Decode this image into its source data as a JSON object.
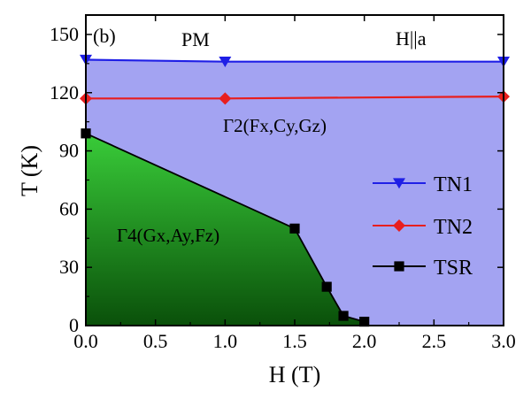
{
  "chart_data": {
    "type": "line",
    "panel_label": "(b)",
    "xlabel": "H (T)",
    "ylabel": "T (K)",
    "xlim": [
      0,
      3.0
    ],
    "ylim": [
      0,
      160
    ],
    "x_ticks": [
      0.0,
      0.5,
      1.0,
      1.5,
      2.0,
      2.5,
      3.0
    ],
    "x_tick_labels": [
      "0.0",
      "0.5",
      "1.0",
      "1.5",
      "2.0",
      "2.5",
      "3.0"
    ],
    "y_ticks": [
      0,
      30,
      60,
      90,
      120,
      150
    ],
    "y_tick_labels": [
      "0",
      "30",
      "60",
      "90",
      "120",
      "150"
    ],
    "region_labels": {
      "pm": "PM",
      "orientation": "H||a",
      "gamma2": "Γ2(Fx,Cy,Gz)",
      "gamma4": "Γ4(Gx,Ay,Fz)"
    },
    "series": [
      {
        "name": "TN1",
        "color": "#1f1fe6",
        "marker": "triangle-down",
        "x": [
          0.0,
          1.0,
          3.0
        ],
        "y": [
          137,
          136,
          136
        ]
      },
      {
        "name": "TN2",
        "color": "#e81e1e",
        "marker": "diamond",
        "x": [
          0.0,
          1.0,
          3.0
        ],
        "y": [
          117,
          117,
          118
        ]
      },
      {
        "name": "TSR",
        "color": "#000000",
        "marker": "square",
        "x": [
          0.0,
          1.5,
          1.73,
          1.85,
          2.0
        ],
        "y": [
          99,
          50,
          20,
          5,
          2
        ]
      }
    ],
    "regions": [
      {
        "name": "Γ2 region",
        "color": "#a3a3f2"
      },
      {
        "name": "Γ4 region",
        "gradient": [
          "#39cc39",
          "#0a500a"
        ]
      },
      {
        "name": "PM region",
        "color": "#ffffff"
      }
    ],
    "legend_placement": "right",
    "grid": false
  }
}
